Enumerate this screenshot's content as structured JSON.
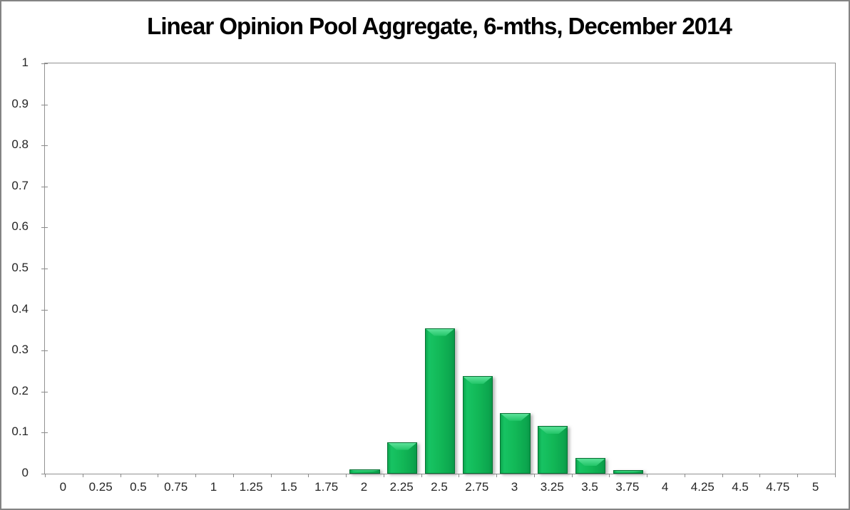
{
  "chart_data": {
    "type": "bar",
    "title": "Linear Opinion Pool Aggregate, 6-mths, December 2014",
    "categories": [
      "0",
      "0.25",
      "0.5",
      "0.75",
      "1",
      "1.25",
      "1.5",
      "1.75",
      "2",
      "2.25",
      "2.5",
      "2.75",
      "3",
      "3.25",
      "3.5",
      "3.75",
      "4",
      "4.25",
      "4.5",
      "4.75",
      "5"
    ],
    "values": [
      0,
      0,
      0,
      0,
      0,
      0,
      0,
      0,
      0.01,
      0.077,
      0.355,
      0.238,
      0.148,
      0.116,
      0.038,
      0.008,
      0,
      0,
      0,
      0,
      0
    ],
    "y_ticks": [
      "0",
      "0.1",
      "0.2",
      "0.3",
      "0.4",
      "0.5",
      "0.6",
      "0.7",
      "0.8",
      "0.9",
      "1"
    ],
    "xlabel": "",
    "ylabel": "",
    "ylim": [
      0,
      1
    ],
    "grid": false,
    "legend": false,
    "colors": {
      "bar_fill": "#12B857",
      "bar_highlight": "#5CE29A",
      "bar_border": "#067133",
      "plot_border": "#919191",
      "tick": "#8A8A8A",
      "label_text": "#262626",
      "title_text": "#000000",
      "frame_border": "#848484",
      "background": "#FFFFFF"
    }
  }
}
